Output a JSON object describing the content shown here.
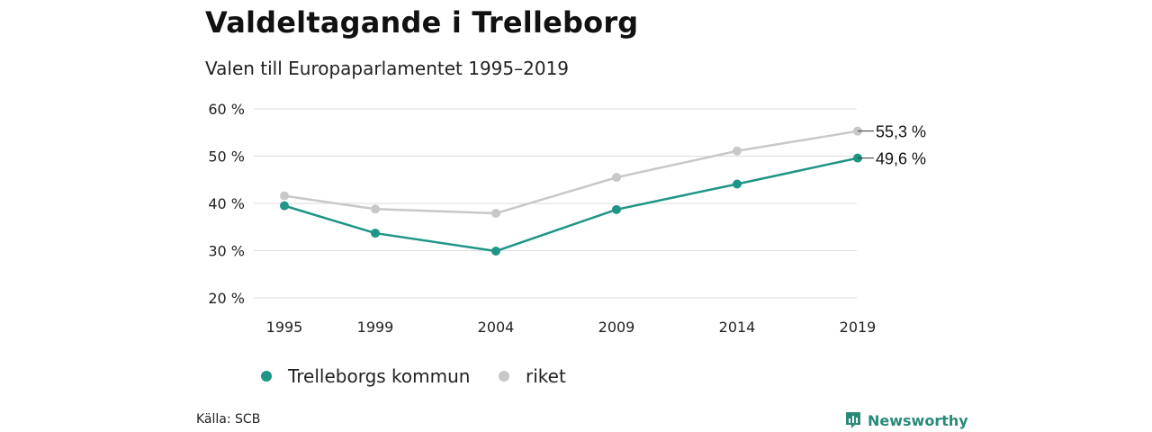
{
  "title": "Valdeltagande i Trelleborg",
  "subtitle": "Valen till Europaparlamentet 1995–2019",
  "source": "Källa: SCB",
  "brand": "Newsworthy",
  "chart_data": {
    "type": "line",
    "x": [
      "1995",
      "1999",
      "2004",
      "2009",
      "2014",
      "2019"
    ],
    "ylim": [
      20,
      60
    ],
    "yticks": [
      "20 %",
      "30 %",
      "40 %",
      "50 %",
      "60 %"
    ],
    "ytick_values": [
      20,
      30,
      40,
      50,
      60
    ],
    "grid": true,
    "legend_position": "bottom-left",
    "series": [
      {
        "name": "riket",
        "color": "#c8c8c8",
        "values": [
          41.6,
          38.8,
          37.9,
          45.5,
          51.1,
          55.3
        ],
        "end_label": "55,3 %"
      },
      {
        "name": "Trelleborgs kommun",
        "color": "#1f9585",
        "values": [
          39.5,
          33.7,
          29.9,
          38.7,
          44.1,
          49.6
        ],
        "end_label": "49,6 %"
      }
    ],
    "legend": [
      "Trelleborgs kommun",
      "riket"
    ]
  }
}
